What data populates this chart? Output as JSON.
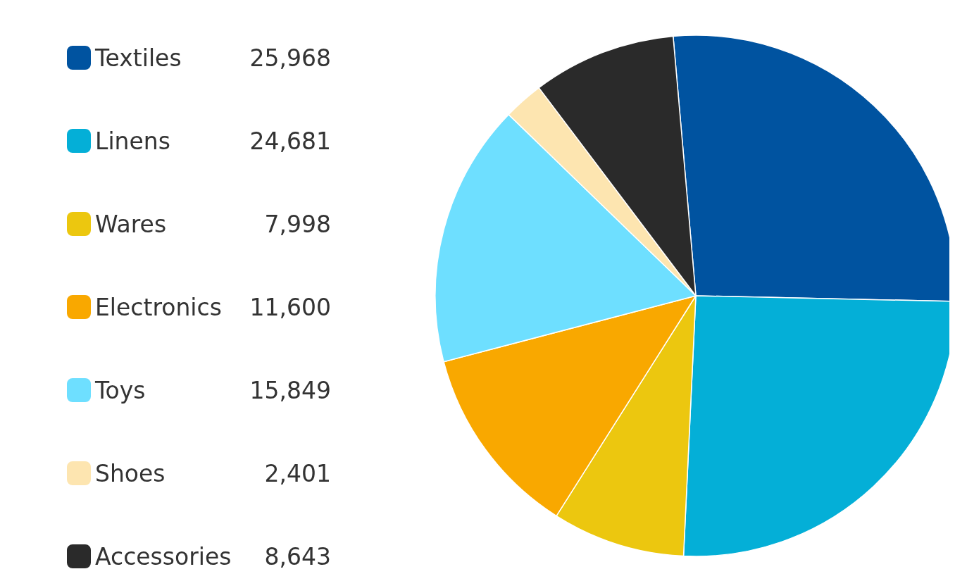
{
  "chart_data": {
    "type": "pie",
    "categories": [
      "Textiles",
      "Linens",
      "Wares",
      "Electronics",
      "Toys",
      "Shoes",
      "Accessories"
    ],
    "values": [
      25968,
      24681,
      7998,
      11600,
      15849,
      2401,
      8643
    ],
    "colors": [
      "#0053a0",
      "#04afd7",
      "#ecc70f",
      "#f9a800",
      "#6edfff",
      "#fde5b0",
      "#2a2a2a"
    ],
    "value_labels": [
      "25,968",
      "24,681",
      "7,998",
      "11,600",
      "15,849",
      "2,401",
      "8,643"
    ],
    "legend": "left"
  }
}
